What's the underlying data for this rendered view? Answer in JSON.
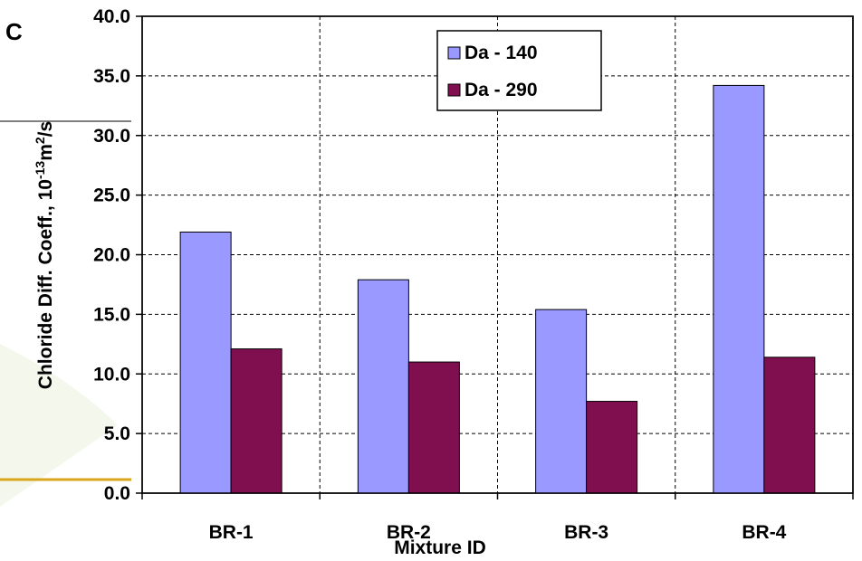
{
  "chart_data": {
    "type": "bar",
    "categories": [
      "BR-1",
      "BR-2",
      "BR-3",
      "BR-4"
    ],
    "series": [
      {
        "name": "Da - 140",
        "color": "#9999ff",
        "values": [
          21.9,
          17.9,
          15.4,
          34.2
        ]
      },
      {
        "name": "Da - 290",
        "color": "#800f4f",
        "values": [
          12.1,
          11.0,
          7.7,
          11.4
        ]
      }
    ],
    "title": "",
    "xlabel": "Mixture ID",
    "ylabel": {
      "main": "Chloride Diff. Coeff., 10",
      "exp1": "-13",
      "unit": "m",
      "exp2": "2",
      "tail": "/s"
    },
    "ylim": [
      0,
      40
    ],
    "yticks": [
      "0.0",
      "5.0",
      "10.0",
      "15.0",
      "20.0",
      "25.0",
      "30.0",
      "35.0",
      "40.0"
    ],
    "grid": true,
    "legend_position": "top-right"
  },
  "partial_text": "C"
}
